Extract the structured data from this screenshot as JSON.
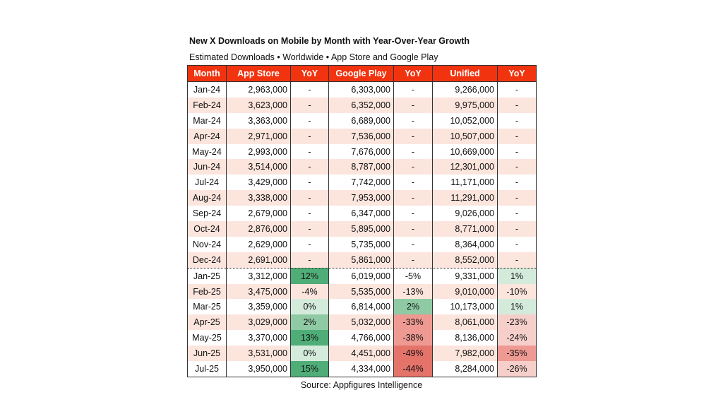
{
  "chart_data": {
    "type": "table",
    "title": "New X Downloads on Mobile by Month with Year-Over-Year Growth",
    "subtitle": "Estimated Downloads • Worldwide • App Store and Google Play",
    "source": "Source: Appfigures Intelligence",
    "columns": [
      "Month",
      "App Store",
      "YoY",
      "Google Play",
      "YoY",
      "Unified",
      "YoY"
    ],
    "rows": [
      {
        "month": "Jan-24",
        "app_store": "2,963,000",
        "app_store_yoy": "-",
        "google_play": "6,303,000",
        "google_play_yoy": "-",
        "unified": "9,266,000",
        "unified_yoy": "-"
      },
      {
        "month": "Feb-24",
        "app_store": "3,623,000",
        "app_store_yoy": "-",
        "google_play": "6,352,000",
        "google_play_yoy": "-",
        "unified": "9,975,000",
        "unified_yoy": "-"
      },
      {
        "month": "Mar-24",
        "app_store": "3,363,000",
        "app_store_yoy": "-",
        "google_play": "6,689,000",
        "google_play_yoy": "-",
        "unified": "10,052,000",
        "unified_yoy": "-"
      },
      {
        "month": "Apr-24",
        "app_store": "2,971,000",
        "app_store_yoy": "-",
        "google_play": "7,536,000",
        "google_play_yoy": "-",
        "unified": "10,507,000",
        "unified_yoy": "-"
      },
      {
        "month": "May-24",
        "app_store": "2,993,000",
        "app_store_yoy": "-",
        "google_play": "7,676,000",
        "google_play_yoy": "-",
        "unified": "10,669,000",
        "unified_yoy": "-"
      },
      {
        "month": "Jun-24",
        "app_store": "3,514,000",
        "app_store_yoy": "-",
        "google_play": "8,787,000",
        "google_play_yoy": "-",
        "unified": "12,301,000",
        "unified_yoy": "-"
      },
      {
        "month": "Jul-24",
        "app_store": "3,429,000",
        "app_store_yoy": "-",
        "google_play": "7,742,000",
        "google_play_yoy": "-",
        "unified": "11,171,000",
        "unified_yoy": "-"
      },
      {
        "month": "Aug-24",
        "app_store": "3,338,000",
        "app_store_yoy": "-",
        "google_play": "7,953,000",
        "google_play_yoy": "-",
        "unified": "11,291,000",
        "unified_yoy": "-"
      },
      {
        "month": "Sep-24",
        "app_store": "2,679,000",
        "app_store_yoy": "-",
        "google_play": "6,347,000",
        "google_play_yoy": "-",
        "unified": "9,026,000",
        "unified_yoy": "-"
      },
      {
        "month": "Oct-24",
        "app_store": "2,876,000",
        "app_store_yoy": "-",
        "google_play": "5,895,000",
        "google_play_yoy": "-",
        "unified": "8,771,000",
        "unified_yoy": "-"
      },
      {
        "month": "Nov-24",
        "app_store": "2,629,000",
        "app_store_yoy": "-",
        "google_play": "5,735,000",
        "google_play_yoy": "-",
        "unified": "8,364,000",
        "unified_yoy": "-"
      },
      {
        "month": "Dec-24",
        "app_store": "2,691,000",
        "app_store_yoy": "-",
        "google_play": "5,861,000",
        "google_play_yoy": "-",
        "unified": "8,552,000",
        "unified_yoy": "-"
      },
      {
        "month": "Jan-25",
        "app_store": "3,312,000",
        "app_store_yoy": "12%",
        "google_play": "6,019,000",
        "google_play_yoy": "-5%",
        "unified": "9,331,000",
        "unified_yoy": "1%"
      },
      {
        "month": "Feb-25",
        "app_store": "3,475,000",
        "app_store_yoy": "-4%",
        "google_play": "5,535,000",
        "google_play_yoy": "-13%",
        "unified": "9,010,000",
        "unified_yoy": "-10%"
      },
      {
        "month": "Mar-25",
        "app_store": "3,359,000",
        "app_store_yoy": "0%",
        "google_play": "6,814,000",
        "google_play_yoy": "2%",
        "unified": "10,173,000",
        "unified_yoy": "1%"
      },
      {
        "month": "Apr-25",
        "app_store": "3,029,000",
        "app_store_yoy": "2%",
        "google_play": "5,032,000",
        "google_play_yoy": "-33%",
        "unified": "8,061,000",
        "unified_yoy": "-23%"
      },
      {
        "month": "May-25",
        "app_store": "3,370,000",
        "app_store_yoy": "13%",
        "google_play": "4,766,000",
        "google_play_yoy": "-38%",
        "unified": "8,136,000",
        "unified_yoy": "-24%"
      },
      {
        "month": "Jun-25",
        "app_store": "3,531,000",
        "app_store_yoy": "0%",
        "google_play": "4,451,000",
        "google_play_yoy": "-49%",
        "unified": "7,982,000",
        "unified_yoy": "-35%"
      },
      {
        "month": "Jul-25",
        "app_store": "3,950,000",
        "app_store_yoy": "15%",
        "google_play": "4,334,000",
        "google_play_yoy": "-44%",
        "unified": "8,284,000",
        "unified_yoy": "-26%"
      }
    ]
  },
  "colors": {
    "header_bg": "#f2330f",
    "header_text": "#ffffff",
    "row_alt_bg": "#fce5dd",
    "positive_strong": "#4fae78",
    "positive_mid": "#8fcaa5",
    "positive_light": "#d4ebdc",
    "negative_light": "#f6cfcb",
    "negative_mid": "#ee9a93",
    "negative_strong": "#e4736a"
  }
}
